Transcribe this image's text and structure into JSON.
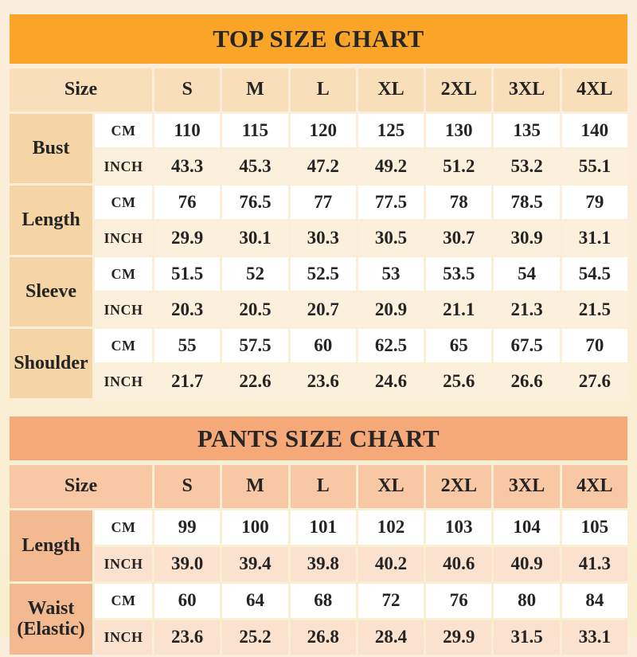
{
  "page": {
    "background_top": "#FCEEDC",
    "background_bottom": "#F8EFCE",
    "text_color": "#242424"
  },
  "chart_data": [
    {
      "type": "table",
      "title": "TOP SIZE CHART",
      "size_header": "Size",
      "unit_labels": [
        "CM",
        "INCH"
      ],
      "columns": [
        "S",
        "M",
        "L",
        "XL",
        "2XL",
        "3XL",
        "4XL"
      ],
      "rows": [
        {
          "label": "Bust",
          "cm": [
            "110",
            "115",
            "120",
            "125",
            "130",
            "135",
            "140"
          ],
          "inch": [
            "43.3",
            "45.3",
            "47.2",
            "49.2",
            "51.2",
            "53.2",
            "55.1"
          ]
        },
        {
          "label": "Length",
          "cm": [
            "76",
            "76.5",
            "77",
            "77.5",
            "78",
            "78.5",
            "79"
          ],
          "inch": [
            "29.9",
            "30.1",
            "30.3",
            "30.5",
            "30.7",
            "30.9",
            "31.1"
          ]
        },
        {
          "label": "Sleeve",
          "cm": [
            "51.5",
            "52",
            "52.5",
            "53",
            "53.5",
            "54",
            "54.5"
          ],
          "inch": [
            "20.3",
            "20.5",
            "20.7",
            "20.9",
            "21.1",
            "21.3",
            "21.5"
          ]
        },
        {
          "label": "Shoulder",
          "cm": [
            "55",
            "57.5",
            "60",
            "62.5",
            "65",
            "67.5",
            "70"
          ],
          "inch": [
            "21.7",
            "22.6",
            "23.6",
            "24.6",
            "25.6",
            "26.6",
            "27.6"
          ]
        }
      ],
      "colors": {
        "header_bg": "#FBA528",
        "size_row_bg": "#F8DFBA",
        "label_bg": "#F5D5A5",
        "cm_bg": "#FFFFFF",
        "inch_bg": "#FBF0DC"
      }
    },
    {
      "type": "table",
      "title": "PANTS SIZE CHART",
      "size_header": "Size",
      "unit_labels": [
        "CM",
        "INCH"
      ],
      "columns": [
        "S",
        "M",
        "L",
        "XL",
        "2XL",
        "3XL",
        "4XL"
      ],
      "rows": [
        {
          "label": "Length",
          "cm": [
            "99",
            "100",
            "101",
            "102",
            "103",
            "104",
            "105"
          ],
          "inch": [
            "39.0",
            "39.4",
            "39.8",
            "40.2",
            "40.6",
            "40.9",
            "41.3"
          ]
        },
        {
          "label": "Waist (Elastic)",
          "cm": [
            "60",
            "64",
            "68",
            "72",
            "76",
            "80",
            "84"
          ],
          "inch": [
            "23.6",
            "25.2",
            "26.8",
            "28.4",
            "29.9",
            "31.5",
            "33.1"
          ]
        }
      ],
      "colors": {
        "header_bg": "#F5A878",
        "size_row_bg": "#F8C8A5",
        "label_bg": "#F3BA91",
        "cm_bg": "#FFFFFF",
        "inch_bg": "#FAE2CF"
      }
    }
  ]
}
